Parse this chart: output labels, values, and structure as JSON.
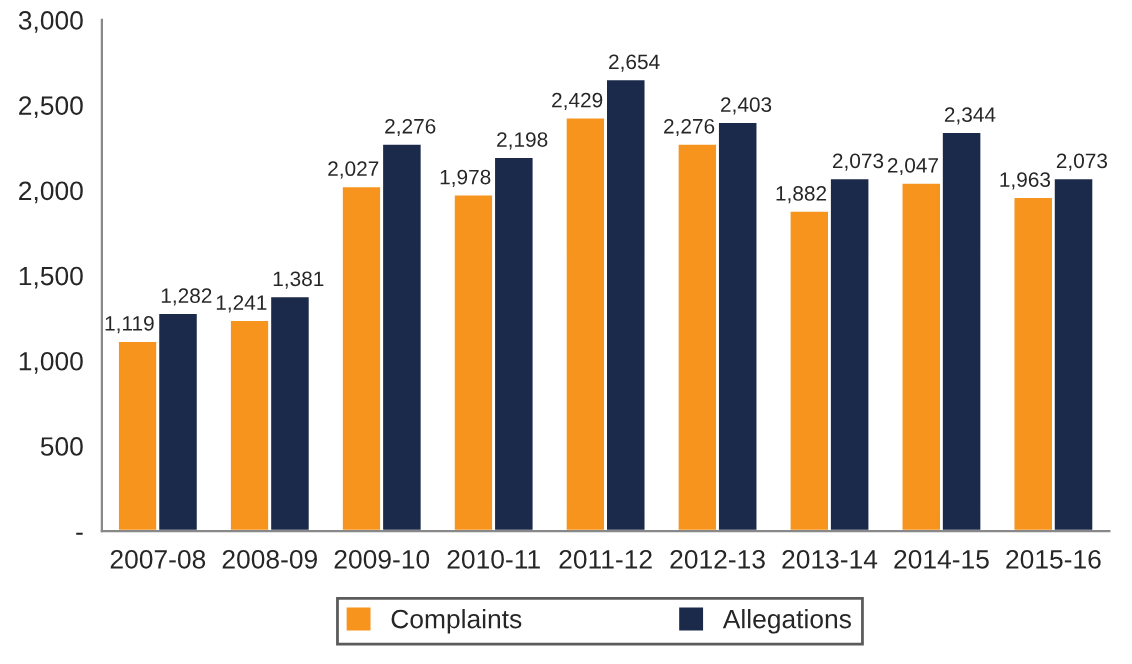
{
  "chart_data": {
    "type": "bar",
    "categories": [
      "2007-08",
      "2008-09",
      "2009-10",
      "2010-11",
      "2011-12",
      "2012-13",
      "2013-14",
      "2014-15",
      "2015-16"
    ],
    "series": [
      {
        "name": "Complaints",
        "color": "#f7941d",
        "values": [
          1119,
          1241,
          2027,
          1978,
          2429,
          2276,
          1882,
          2047,
          1963
        ],
        "value_labels": [
          "1,119",
          "1,241",
          "2,027",
          "1,978",
          "2,429",
          "2,276",
          "1,882",
          "2,047",
          "1,963"
        ]
      },
      {
        "name": "Allegations",
        "color": "#1b2a4a",
        "values": [
          1282,
          1381,
          2276,
          2198,
          2654,
          2403,
          2073,
          2344,
          2073
        ],
        "value_labels": [
          "1,282",
          "1,381",
          "2,276",
          "2,198",
          "2,654",
          "2,403",
          "2,073",
          "2,344",
          "2,073"
        ]
      }
    ],
    "ylim": [
      0,
      3000
    ],
    "yticks": [
      {
        "value": 0,
        "label": "-"
      },
      {
        "value": 500,
        "label": "500"
      },
      {
        "value": 1000,
        "label": "1,000"
      },
      {
        "value": 1500,
        "label": "1,500"
      },
      {
        "value": 2000,
        "label": "2,000"
      },
      {
        "value": 2500,
        "label": "2,500"
      },
      {
        "value": 3000,
        "label": "3,000"
      }
    ],
    "grid": false,
    "legend": "bottom"
  }
}
